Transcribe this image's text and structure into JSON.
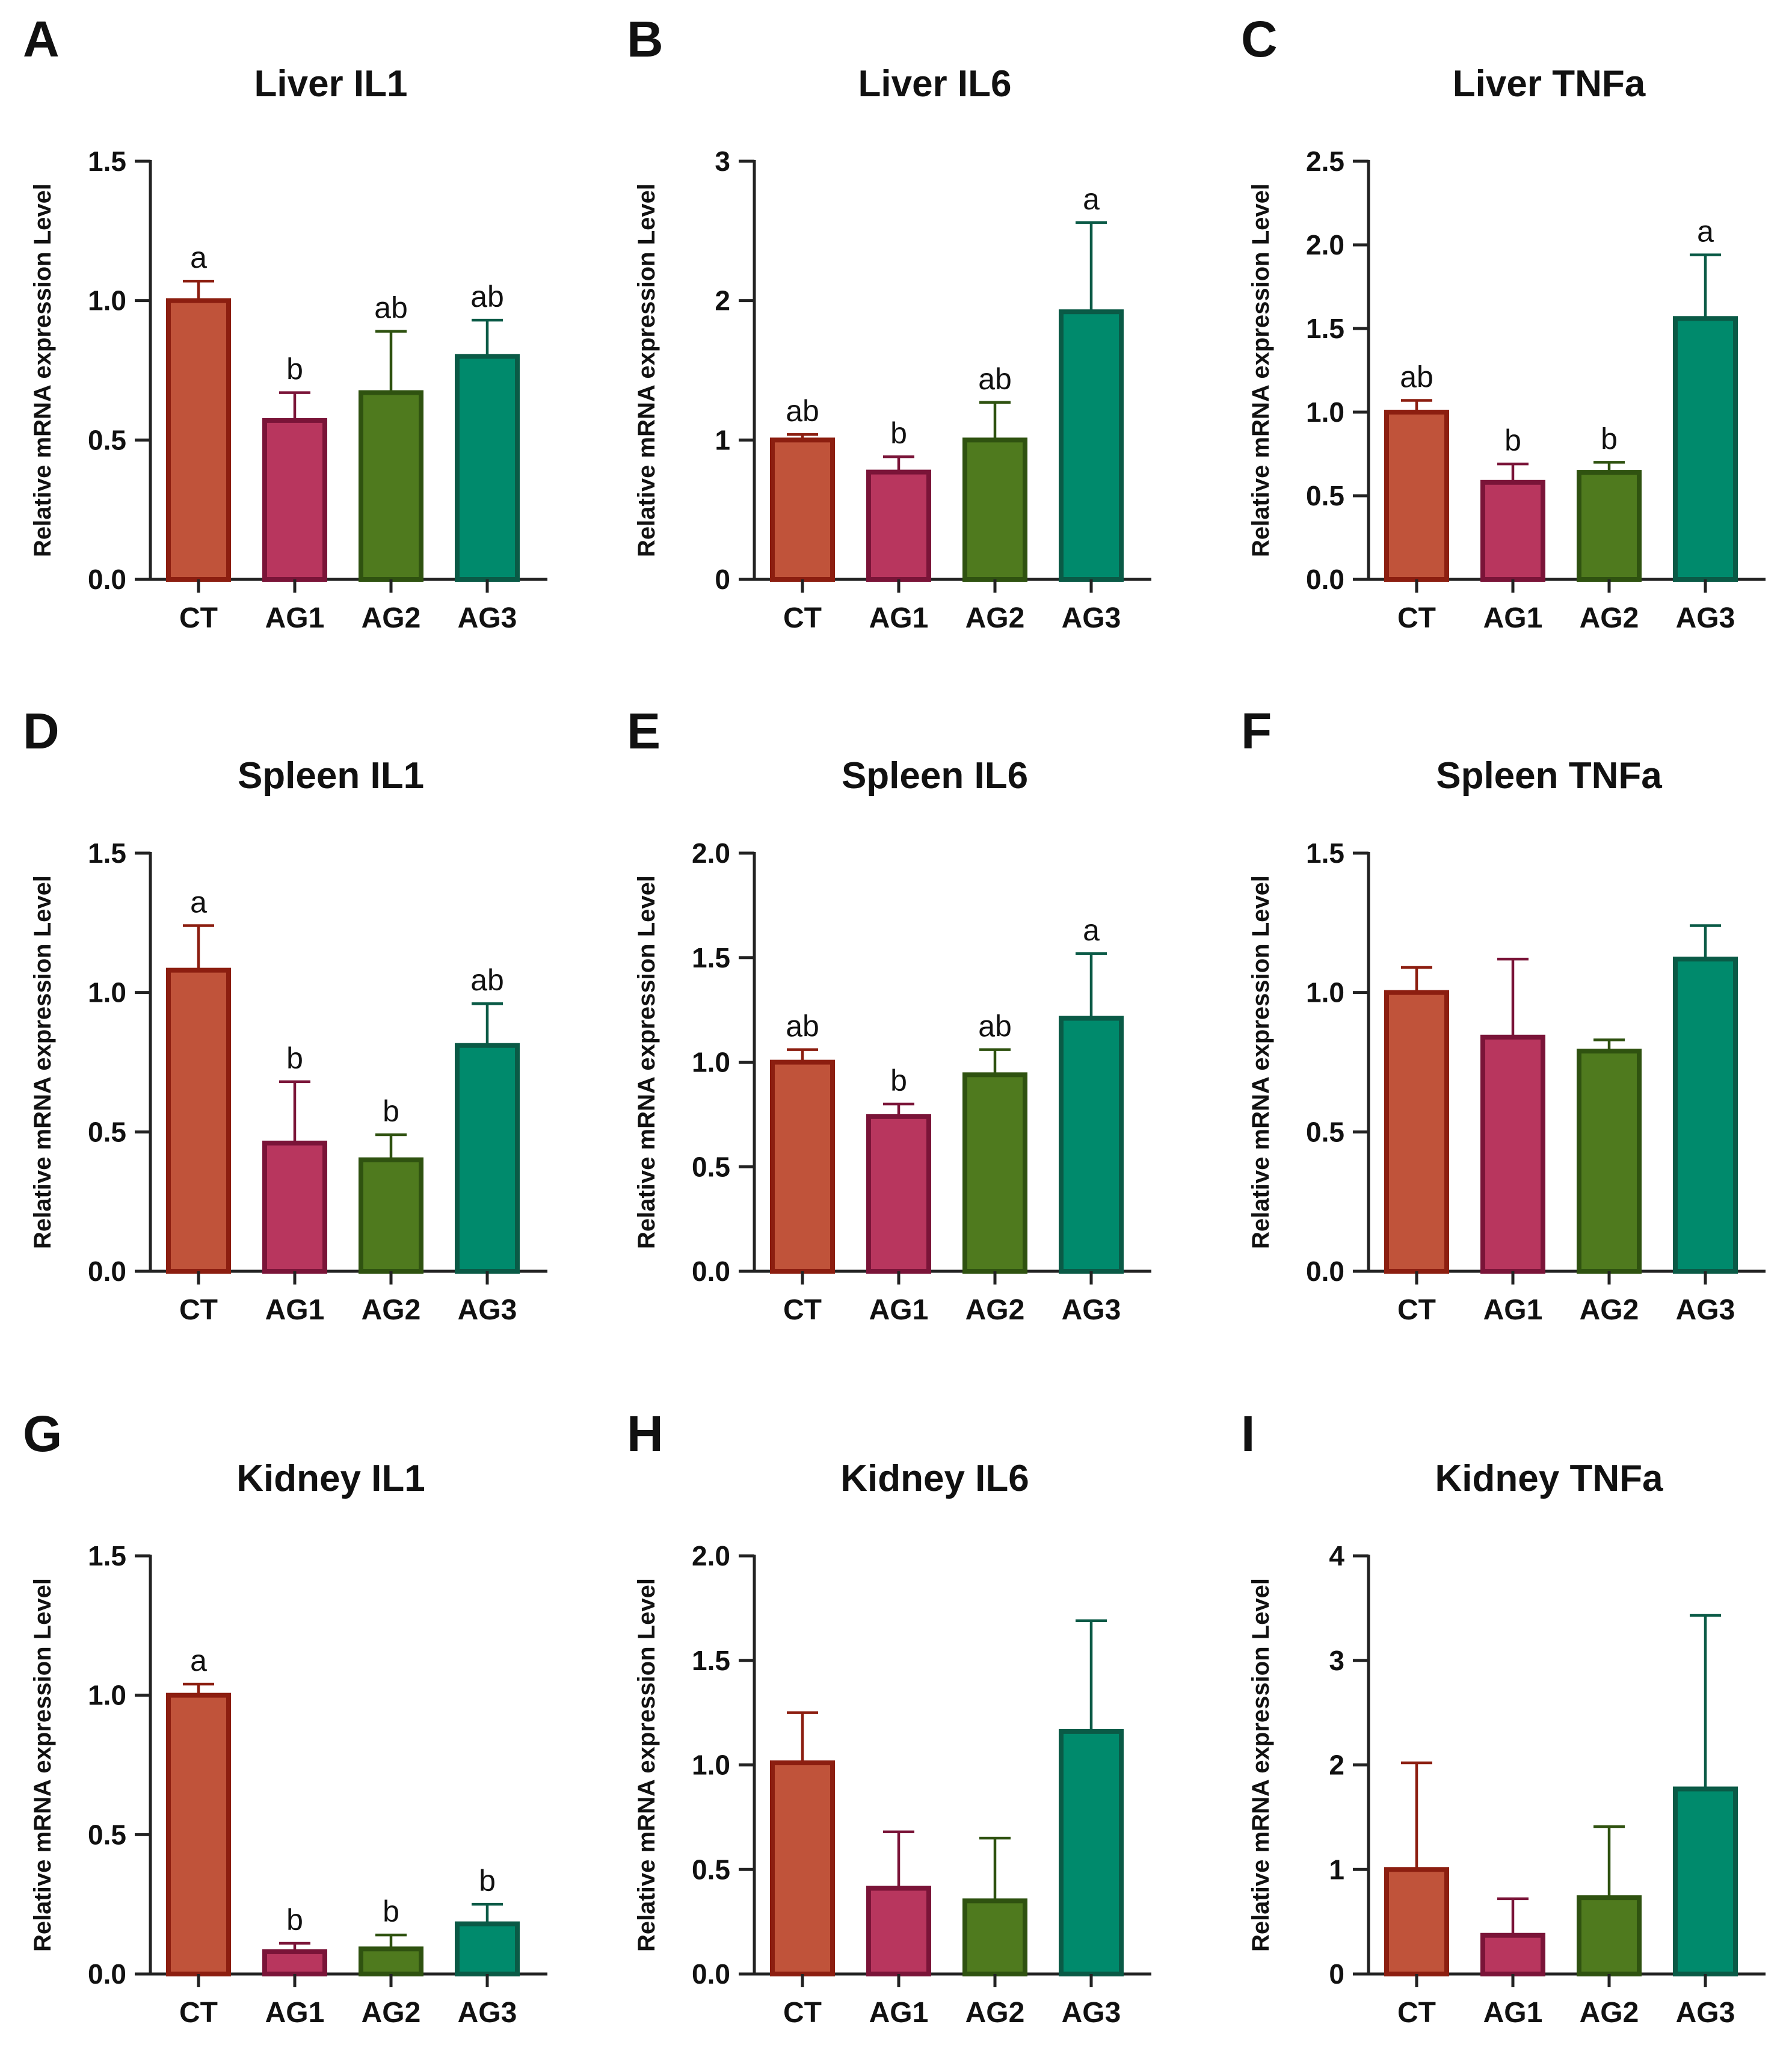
{
  "figure": {
    "ylabel": "Relative mRNA expression Level",
    "categories": [
      "CT",
      "AG1",
      "AG2",
      "AG3"
    ],
    "colors": {
      "fill": [
        "#c0533a",
        "#b8365e",
        "#4f7a1e",
        "#008a6c"
      ],
      "stroke": [
        "#8c1e10",
        "#7a1438",
        "#2f5210",
        "#0a5a46"
      ],
      "axis": "#222222",
      "text": "#111111"
    }
  },
  "chart_data": [
    {
      "panel": "A",
      "title": "Liver IL1",
      "type": "bar",
      "categories": [
        "CT",
        "AG1",
        "AG2",
        "AG3"
      ],
      "values": [
        1.0,
        0.57,
        0.67,
        0.8
      ],
      "errors": [
        0.07,
        0.1,
        0.22,
        0.13
      ],
      "letters": [
        "a",
        "b",
        "ab",
        "ab"
      ],
      "ylim": [
        0,
        1.5
      ],
      "yticks": [
        0.0,
        0.5,
        1.0,
        1.5
      ],
      "tick_labels": [
        "0.0",
        "0.5",
        "1.0",
        "1.5"
      ],
      "ylabel": "Relative mRNA expression Level"
    },
    {
      "panel": "B",
      "title": "Liver IL6",
      "type": "bar",
      "categories": [
        "CT",
        "AG1",
        "AG2",
        "AG3"
      ],
      "values": [
        1.0,
        0.77,
        1.0,
        1.92
      ],
      "errors": [
        0.04,
        0.11,
        0.27,
        0.64
      ],
      "letters": [
        "ab",
        "b",
        "ab",
        "a"
      ],
      "ylim": [
        0,
        3
      ],
      "yticks": [
        0,
        1,
        2,
        3
      ],
      "tick_labels": [
        "0",
        "1",
        "2",
        "3"
      ],
      "ylabel": "Relative mRNA expression Level"
    },
    {
      "panel": "C",
      "title": "Liver TNFa",
      "type": "bar",
      "categories": [
        "CT",
        "AG1",
        "AG2",
        "AG3"
      ],
      "values": [
        1.0,
        0.58,
        0.64,
        1.56
      ],
      "errors": [
        0.07,
        0.11,
        0.06,
        0.38
      ],
      "letters": [
        "ab",
        "b",
        "b",
        "a"
      ],
      "ylim": [
        0,
        2.5
      ],
      "yticks": [
        0.0,
        0.5,
        1.0,
        1.5,
        2.0,
        2.5
      ],
      "tick_labels": [
        "0.0",
        "0.5",
        "1.0",
        "1.5",
        "2.0",
        "2.5"
      ],
      "ylabel": "Relative mRNA expression Level"
    },
    {
      "panel": "D",
      "title": "Spleen IL1",
      "type": "bar",
      "categories": [
        "CT",
        "AG1",
        "AG2",
        "AG3"
      ],
      "values": [
        1.08,
        0.46,
        0.4,
        0.81
      ],
      "errors": [
        0.16,
        0.22,
        0.09,
        0.15
      ],
      "letters": [
        "a",
        "b",
        "b",
        "ab"
      ],
      "ylim": [
        0,
        1.5
      ],
      "yticks": [
        0.0,
        0.5,
        1.0,
        1.5
      ],
      "tick_labels": [
        "0.0",
        "0.5",
        "1.0",
        "1.5"
      ],
      "ylabel": "Relative mRNA expression Level"
    },
    {
      "panel": "E",
      "title": "Spleen IL6",
      "type": "bar",
      "categories": [
        "CT",
        "AG1",
        "AG2",
        "AG3"
      ],
      "values": [
        1.0,
        0.74,
        0.94,
        1.21
      ],
      "errors": [
        0.06,
        0.06,
        0.12,
        0.31
      ],
      "letters": [
        "ab",
        "b",
        "ab",
        "a"
      ],
      "ylim": [
        0,
        2.0
      ],
      "yticks": [
        0.0,
        0.5,
        1.0,
        1.5,
        2.0
      ],
      "tick_labels": [
        "0.0",
        "0.5",
        "1.0",
        "1.5",
        "2.0"
      ],
      "ylabel": "Relative mRNA expression Level"
    },
    {
      "panel": "F",
      "title": "Spleen TNFa",
      "type": "bar",
      "categories": [
        "CT",
        "AG1",
        "AG2",
        "AG3"
      ],
      "values": [
        1.0,
        0.84,
        0.79,
        1.12
      ],
      "errors": [
        0.09,
        0.28,
        0.04,
        0.12
      ],
      "letters": [
        "",
        "",
        "",
        ""
      ],
      "ylim": [
        0,
        1.5
      ],
      "yticks": [
        0.0,
        0.5,
        1.0,
        1.5
      ],
      "tick_labels": [
        "0.0",
        "0.5",
        "1.0",
        "1.5"
      ],
      "ylabel": "Relative mRNA expression Level"
    },
    {
      "panel": "G",
      "title": "Kidney IL1",
      "type": "bar",
      "categories": [
        "CT",
        "AG1",
        "AG2",
        "AG3"
      ],
      "values": [
        1.0,
        0.08,
        0.09,
        0.18
      ],
      "errors": [
        0.04,
        0.03,
        0.05,
        0.07
      ],
      "letters": [
        "a",
        "b",
        "b",
        "b"
      ],
      "ylim": [
        0,
        1.5
      ],
      "yticks": [
        0.0,
        0.5,
        1.0,
        1.5
      ],
      "tick_labels": [
        "0.0",
        "0.5",
        "1.0",
        "1.5"
      ],
      "ylabel": "Relative mRNA expression Level"
    },
    {
      "panel": "H",
      "title": "Kidney IL6",
      "type": "bar",
      "categories": [
        "CT",
        "AG1",
        "AG2",
        "AG3"
      ],
      "values": [
        1.01,
        0.41,
        0.35,
        1.16
      ],
      "errors": [
        0.24,
        0.27,
        0.3,
        0.53
      ],
      "letters": [
        "",
        "",
        "",
        ""
      ],
      "ylim": [
        0,
        2.0
      ],
      "yticks": [
        0.0,
        0.5,
        1.0,
        1.5,
        2.0
      ],
      "tick_labels": [
        "0.0",
        "0.5",
        "1.0",
        "1.5",
        "2.0"
      ],
      "ylabel": "Relative mRNA expression Level"
    },
    {
      "panel": "I",
      "title": "Kidney TNFa",
      "type": "bar",
      "categories": [
        "CT",
        "AG1",
        "AG2",
        "AG3"
      ],
      "values": [
        1.0,
        0.37,
        0.73,
        1.77
      ],
      "errors": [
        1.02,
        0.35,
        0.68,
        1.66
      ],
      "letters": [
        "",
        "",
        "",
        ""
      ],
      "ylim": [
        0,
        4
      ],
      "yticks": [
        0,
        1,
        2,
        3,
        4
      ],
      "tick_labels": [
        "0",
        "1",
        "2",
        "3",
        "4"
      ],
      "ylabel": "Relative mRNA expression Level"
    }
  ]
}
